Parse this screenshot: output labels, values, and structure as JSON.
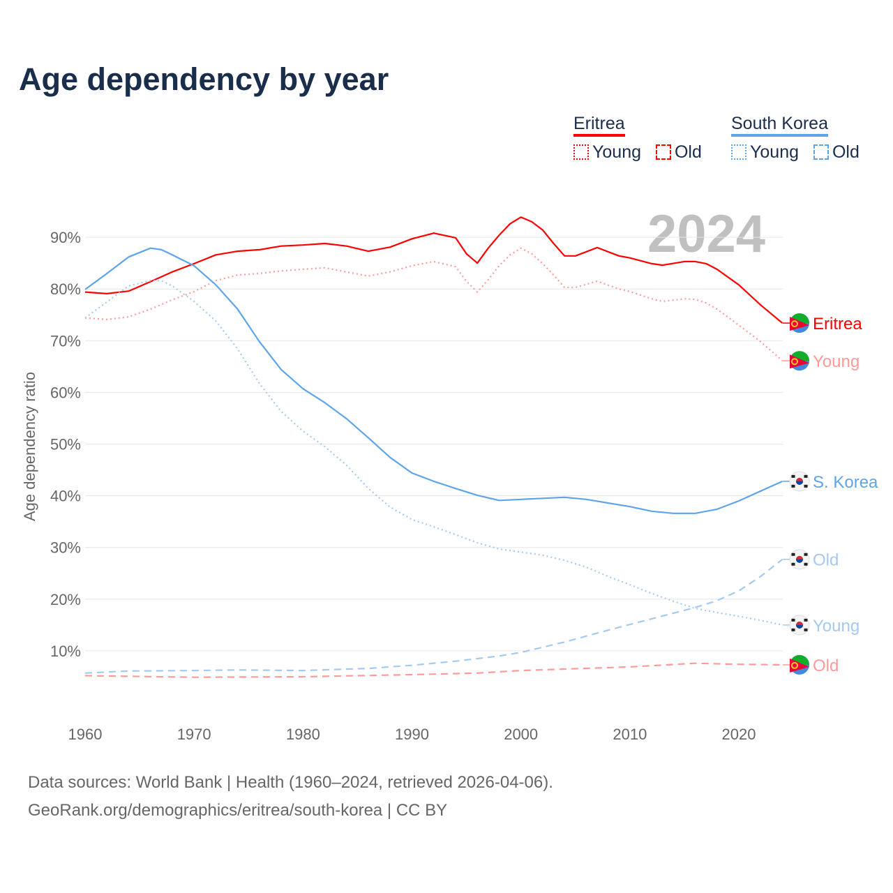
{
  "title": "Age dependency by year",
  "year_badge": "2024",
  "legend": {
    "eritrea": {
      "name": "Eritrea",
      "young": "Young",
      "old": "Old",
      "color": "#ff0000"
    },
    "korea": {
      "name": "South Korea",
      "young": "Young",
      "old": "Old",
      "color": "#5ea4ea"
    }
  },
  "footer": {
    "line1": "Data sources: World Bank | Health (1960–2024, retrieved 2026-04-06).",
    "line2": "GeoRank.org/demographics/eritrea/south-korea | CC BY"
  },
  "chart_data": {
    "type": "line",
    "ylabel": "Age dependency ratio",
    "xlim": [
      1960,
      2024
    ],
    "ylim": [
      0,
      100
    ],
    "xticks": [
      "1960",
      "1970",
      "1980",
      "1990",
      "2000",
      "2010",
      "2020"
    ],
    "yticks": [
      "10%",
      "20%",
      "30%",
      "40%",
      "50%",
      "60%",
      "70%",
      "80%",
      "90%"
    ],
    "series": [
      {
        "name": "Eritrea",
        "label": "Eritrea",
        "color": "#ff0000",
        "dash": "solid",
        "flag": "eritrea",
        "x": [
          1960,
          1962,
          1964,
          1966,
          1968,
          1970,
          1972,
          1974,
          1976,
          1978,
          1980,
          1982,
          1984,
          1986,
          1988,
          1990,
          1992,
          1994,
          1995,
          1996,
          1997,
          1998,
          1999,
          2000,
          2001,
          2002,
          2003,
          2004,
          2005,
          2007,
          2009,
          2010,
          2012,
          2013,
          2015,
          2016,
          2017,
          2018,
          2020,
          2022,
          2024
        ],
        "y": [
          79.4,
          79.1,
          79.6,
          81.4,
          83.3,
          84.9,
          86.6,
          87.3,
          87.6,
          88.3,
          88.5,
          88.8,
          88.3,
          87.3,
          88.1,
          89.7,
          90.8,
          89.9,
          86.8,
          85.0,
          87.9,
          90.4,
          92.6,
          93.9,
          93.0,
          91.4,
          88.8,
          86.4,
          86.4,
          88.0,
          86.4,
          86.0,
          84.9,
          84.6,
          85.3,
          85.3,
          84.9,
          83.8,
          80.8,
          76.9,
          73.4
        ]
      },
      {
        "name": "Eritrea Young",
        "label": "Young",
        "color": "#ff9a9a",
        "dash": "dotted",
        "flag": "eritrea",
        "x": [
          1960,
          1962,
          1964,
          1966,
          1968,
          1970,
          1972,
          1974,
          1976,
          1978,
          1980,
          1982,
          1984,
          1986,
          1988,
          1990,
          1992,
          1994,
          1995,
          1996,
          1997,
          1998,
          1999,
          2000,
          2001,
          2002,
          2003,
          2004,
          2005,
          2007,
          2009,
          2010,
          2012,
          2013,
          2015,
          2016,
          2017,
          2018,
          2020,
          2022,
          2024
        ],
        "y": [
          74.4,
          74.1,
          74.6,
          76.1,
          77.9,
          79.5,
          81.6,
          82.7,
          83.0,
          83.5,
          83.8,
          84.1,
          83.3,
          82.5,
          83.3,
          84.5,
          85.3,
          84.3,
          81.5,
          79.4,
          81.8,
          84.5,
          86.6,
          87.9,
          86.8,
          84.9,
          82.7,
          80.3,
          80.3,
          81.5,
          80.0,
          79.5,
          78.1,
          77.6,
          78.1,
          78.0,
          77.3,
          76.1,
          73.0,
          69.8,
          66.1
        ]
      },
      {
        "name": "Eritrea Old",
        "label": "Old",
        "color": "#ff9a9a",
        "dash": "dashed",
        "flag": "eritrea",
        "x": [
          1960,
          1970,
          1980,
          1990,
          1996,
          2000,
          2010,
          2016,
          2020,
          2024
        ],
        "y": [
          5.2,
          4.9,
          5.0,
          5.4,
          5.7,
          6.2,
          6.9,
          7.6,
          7.4,
          7.3
        ]
      },
      {
        "name": "South Korea",
        "label": "S. Korea",
        "color": "#5ea4ea",
        "dash": "solid",
        "flag": "korea",
        "x": [
          1960,
          1962,
          1964,
          1966,
          1967,
          1968,
          1970,
          1972,
          1974,
          1976,
          1978,
          1980,
          1982,
          1984,
          1986,
          1988,
          1990,
          1992,
          1994,
          1996,
          1998,
          2000,
          2002,
          2004,
          2006,
          2008,
          2010,
          2012,
          2014,
          2016,
          2018,
          2020,
          2022,
          2024
        ],
        "y": [
          79.9,
          83.0,
          86.2,
          87.9,
          87.6,
          86.6,
          84.5,
          80.8,
          76.1,
          69.8,
          64.4,
          60.7,
          58.0,
          54.9,
          51.2,
          47.4,
          44.4,
          42.8,
          41.4,
          40.1,
          39.1,
          39.3,
          39.5,
          39.7,
          39.3,
          38.6,
          37.9,
          37.0,
          36.6,
          36.6,
          37.4,
          39.0,
          40.9,
          42.8
        ]
      },
      {
        "name": "South Korea Old",
        "label": "Old",
        "color": "#a5c9f0",
        "dash": "dashed",
        "flag": "korea",
        "x": [
          1960,
          1964,
          1970,
          1974,
          1980,
          1986,
          1990,
          1994,
          1998,
          2000,
          2004,
          2008,
          2012,
          2016,
          2018,
          2020,
          2022,
          2024
        ],
        "y": [
          5.7,
          6.1,
          6.2,
          6.3,
          6.2,
          6.6,
          7.2,
          8.0,
          9.0,
          9.7,
          11.7,
          14.0,
          16.2,
          18.4,
          19.7,
          21.6,
          24.4,
          27.7
        ]
      },
      {
        "name": "South Korea Young",
        "label": "Young",
        "color": "#a5c9f0",
        "dash": "dotted",
        "flag": "korea",
        "x": [
          1960,
          1962,
          1964,
          1966,
          1967,
          1968,
          1970,
          1972,
          1974,
          1976,
          1978,
          1980,
          1982,
          1984,
          1986,
          1988,
          1990,
          1992,
          1994,
          1996,
          1998,
          2000,
          2002,
          2004,
          2006,
          2008,
          2010,
          2012,
          2014,
          2016,
          2018,
          2020,
          2022,
          2024
        ],
        "y": [
          74.4,
          77.5,
          80.6,
          81.6,
          81.6,
          80.6,
          77.6,
          73.8,
          68.4,
          61.7,
          56.3,
          52.5,
          49.5,
          45.9,
          41.4,
          37.8,
          35.4,
          34.0,
          32.5,
          30.9,
          29.7,
          29.1,
          28.5,
          27.5,
          26.2,
          24.4,
          22.8,
          21.1,
          19.6,
          18.2,
          17.4,
          16.7,
          15.9,
          15.0
        ]
      }
    ]
  }
}
